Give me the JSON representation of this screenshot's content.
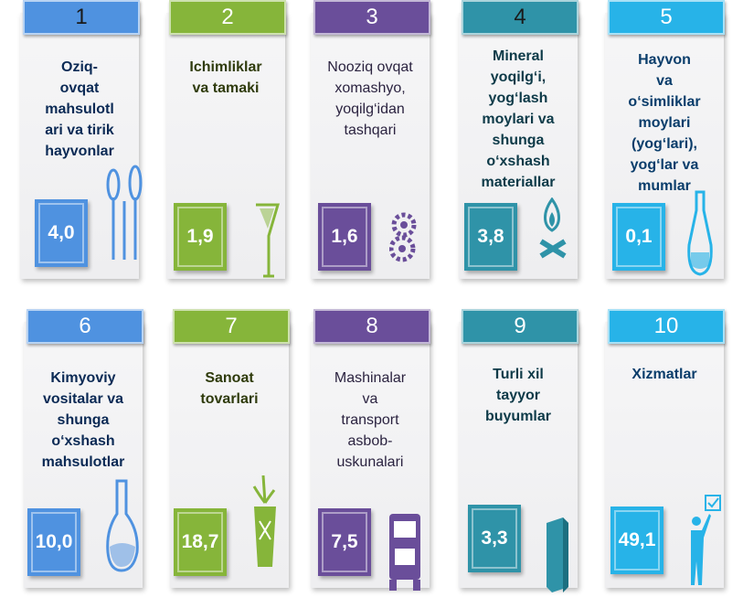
{
  "colors": {
    "blue": "#4f92e0",
    "green": "#86b53a",
    "purple": "#6a4e9a",
    "teal": "#2f93a8",
    "cyan": "#27b3e8"
  },
  "cards": [
    {
      "number": "1",
      "label_lines": [
        "Oziq-",
        "ovqat",
        "mahsulotl",
        "ari va tirik",
        "hayvonlar"
      ],
      "value": "4,0",
      "icon": "tuning-fork-icon"
    },
    {
      "number": "2",
      "label_lines": [
        "Ichimliklar",
        "va tamaki"
      ],
      "value": "1,9",
      "icon": "cocktail-glass-icon"
    },
    {
      "number": "3",
      "label_lines": [
        "Nooziq ovqat",
        "xomashyo,",
        "yoqilg‘idan",
        "tashqari"
      ],
      "value": "1,6",
      "icon": "gears-icon"
    },
    {
      "number": "4",
      "label_lines": [
        "Mineral",
        "yoqilg‘i,",
        "yog‘lash",
        "moylari va",
        "shunga",
        "o‘xshash",
        "materiallar"
      ],
      "value": "3,8",
      "icon": "gas-flame-icon"
    },
    {
      "number": "5",
      "label_lines": [
        "Hayvon",
        "va",
        "o‘simliklar",
        "moylari",
        "(yog‘lari),",
        "yog‘lar va",
        "mumlar"
      ],
      "value": "0,1",
      "icon": "oil-bottle-icon"
    },
    {
      "number": "6",
      "label_lines": [
        "Kimyoviy",
        "vositalar va",
        "shunga",
        "o‘xshash",
        "mahsulotlar"
      ],
      "value": "10,0",
      "icon": "flask-icon"
    },
    {
      "number": "7",
      "label_lines": [
        "Sanoat",
        "tovarlari"
      ],
      "value": "18,7",
      "icon": "plant-icon"
    },
    {
      "number": "8",
      "label_lines": [
        "Mashinalar",
        "va",
        "transport",
        "asbob-",
        "uskunalari"
      ],
      "value": "7,5",
      "icon": "truck-icon"
    },
    {
      "number": "9",
      "label_lines": [
        "Turli xil",
        "tayyor",
        "buyumlar"
      ],
      "value": "3,3",
      "icon": "box-icon"
    },
    {
      "number": "10",
      "label_lines": [
        "Xizmatlar"
      ],
      "value": "49,1",
      "icon": "presenter-icon"
    }
  ]
}
